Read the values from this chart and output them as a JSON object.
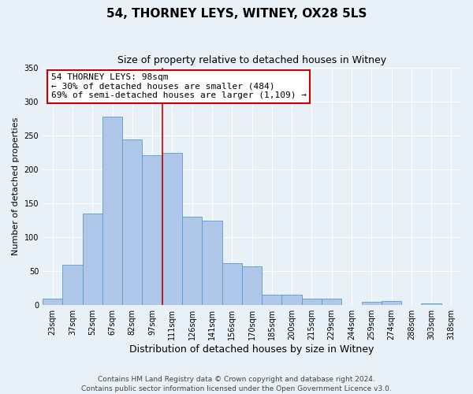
{
  "title": "54, THORNEY LEYS, WITNEY, OX28 5LS",
  "subtitle": "Size of property relative to detached houses in Witney",
  "xlabel": "Distribution of detached houses by size in Witney",
  "ylabel": "Number of detached properties",
  "bar_labels": [
    "23sqm",
    "37sqm",
    "52sqm",
    "67sqm",
    "82sqm",
    "97sqm",
    "111sqm",
    "126sqm",
    "141sqm",
    "156sqm",
    "170sqm",
    "185sqm",
    "200sqm",
    "215sqm",
    "229sqm",
    "244sqm",
    "259sqm",
    "274sqm",
    "288sqm",
    "303sqm",
    "318sqm"
  ],
  "bar_values": [
    10,
    59,
    135,
    278,
    244,
    221,
    224,
    130,
    124,
    62,
    57,
    15,
    15,
    9,
    9,
    0,
    5,
    6,
    0,
    2,
    0
  ],
  "bar_color": "#aec6e8",
  "bar_edge_color": "#5b9bd5",
  "background_color": "#e8f0f8",
  "grid_color": "#ffffff",
  "ylim": [
    0,
    350
  ],
  "yticks": [
    0,
    50,
    100,
    150,
    200,
    250,
    300,
    350
  ],
  "vline_x": 5.5,
  "vline_color": "#cc0000",
  "annotation_title": "54 THORNEY LEYS: 98sqm",
  "annotation_line1": "← 30% of detached houses are smaller (484)",
  "annotation_line2": "69% of semi-detached houses are larger (1,109) →",
  "annotation_box_color": "#ffffff",
  "annotation_box_edge": "#cc0000",
  "footer_line1": "Contains HM Land Registry data © Crown copyright and database right 2024.",
  "footer_line2": "Contains public sector information licensed under the Open Government Licence v3.0.",
  "title_fontsize": 11,
  "subtitle_fontsize": 9,
  "xlabel_fontsize": 9,
  "ylabel_fontsize": 8,
  "tick_fontsize": 7,
  "annotation_fontsize": 8,
  "footer_fontsize": 6.5
}
